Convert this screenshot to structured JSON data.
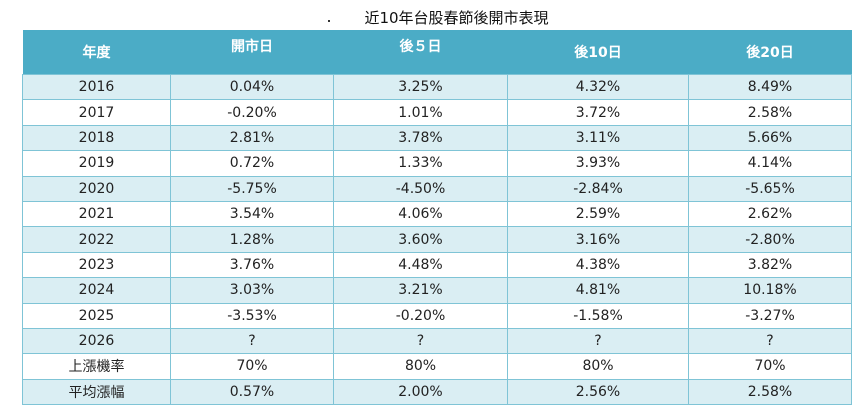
{
  "title": "近10年台股春節後開市表現",
  "colors": {
    "header_bg": "#4bacc6",
    "alt_row_bg": "#daeef3"
  },
  "headers": [
    "年度",
    "開市日",
    "後５日",
    "後10日",
    "後20日"
  ],
  "rows": [
    [
      "2016",
      "0.04%",
      "3.25%",
      "4.32%",
      "8.49%"
    ],
    [
      "2017",
      "-0.20%",
      "1.01%",
      "3.72%",
      "2.58%"
    ],
    [
      "2018",
      "2.81%",
      "3.78%",
      "3.11%",
      "5.66%"
    ],
    [
      "2019",
      "0.72%",
      "1.33%",
      "3.93%",
      "4.14%"
    ],
    [
      "2020",
      "-5.75%",
      "-4.50%",
      "-2.84%",
      "-5.65%"
    ],
    [
      "2021",
      "3.54%",
      "4.06%",
      "2.59%",
      "2.62%"
    ],
    [
      "2022",
      "1.28%",
      "3.60%",
      "3.16%",
      "-2.80%"
    ],
    [
      "2023",
      "3.76%",
      "4.48%",
      "4.38%",
      "3.82%"
    ],
    [
      "2024",
      "3.03%",
      "3.21%",
      "4.81%",
      "10.18%"
    ],
    [
      "2025",
      "-3.53%",
      "-0.20%",
      "-1.58%",
      "-3.27%"
    ],
    [
      "2026",
      "?",
      "?",
      "?",
      "?"
    ],
    [
      "上漲機率",
      "70%",
      "80%",
      "80%",
      "70%"
    ],
    [
      "平均漲幅",
      "0.57%",
      "2.00%",
      "2.56%",
      "2.58%"
    ]
  ]
}
